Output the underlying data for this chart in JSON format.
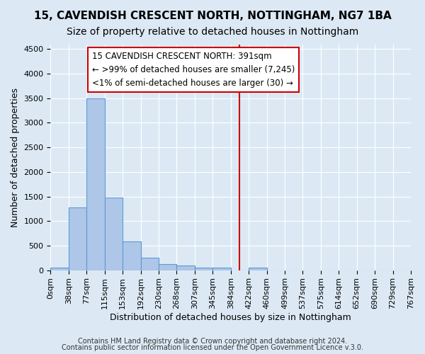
{
  "title1": "15, CAVENDISH CRESCENT NORTH, NOTTINGHAM, NG7 1BA",
  "title2": "Size of property relative to detached houses in Nottingham",
  "xlabel": "Distribution of detached houses by size in Nottingham",
  "ylabel": "Number of detached properties",
  "bin_labels": [
    "0sqm",
    "38sqm",
    "77sqm",
    "115sqm",
    "153sqm",
    "192sqm",
    "230sqm",
    "268sqm",
    "307sqm",
    "345sqm",
    "384sqm",
    "422sqm",
    "460sqm",
    "499sqm",
    "537sqm",
    "575sqm",
    "614sqm",
    "652sqm",
    "690sqm",
    "729sqm",
    "767sqm"
  ],
  "bar_values": [
    50,
    1280,
    3500,
    1480,
    580,
    250,
    130,
    90,
    50,
    50,
    0,
    50,
    0,
    0,
    0,
    0,
    0,
    0,
    0,
    0
  ],
  "bar_color": "#aec6e8",
  "bar_edge_color": "#5b9bd5",
  "red_line_x": 10.5,
  "annotation_text": "15 CAVENDISH CRESCENT NORTH: 391sqm\n← >99% of detached houses are smaller (7,245)\n<1% of semi-detached houses are larger (30) →",
  "annotation_box_color": "#ffffff",
  "annotation_box_edge": "#cc0000",
  "footnote1": "Contains HM Land Registry data © Crown copyright and database right 2024.",
  "footnote2": "Contains public sector information licensed under the Open Government Licence v.3.0.",
  "bg_color": "#dce9f5",
  "ylim": [
    0,
    4600
  ],
  "yticks": [
    0,
    500,
    1000,
    1500,
    2000,
    2500,
    3000,
    3500,
    4000,
    4500
  ],
  "title1_fontsize": 11,
  "title2_fontsize": 10,
  "xlabel_fontsize": 9,
  "ylabel_fontsize": 9,
  "tick_fontsize": 8,
  "annot_fontsize": 8.5,
  "footnote_fontsize": 7
}
